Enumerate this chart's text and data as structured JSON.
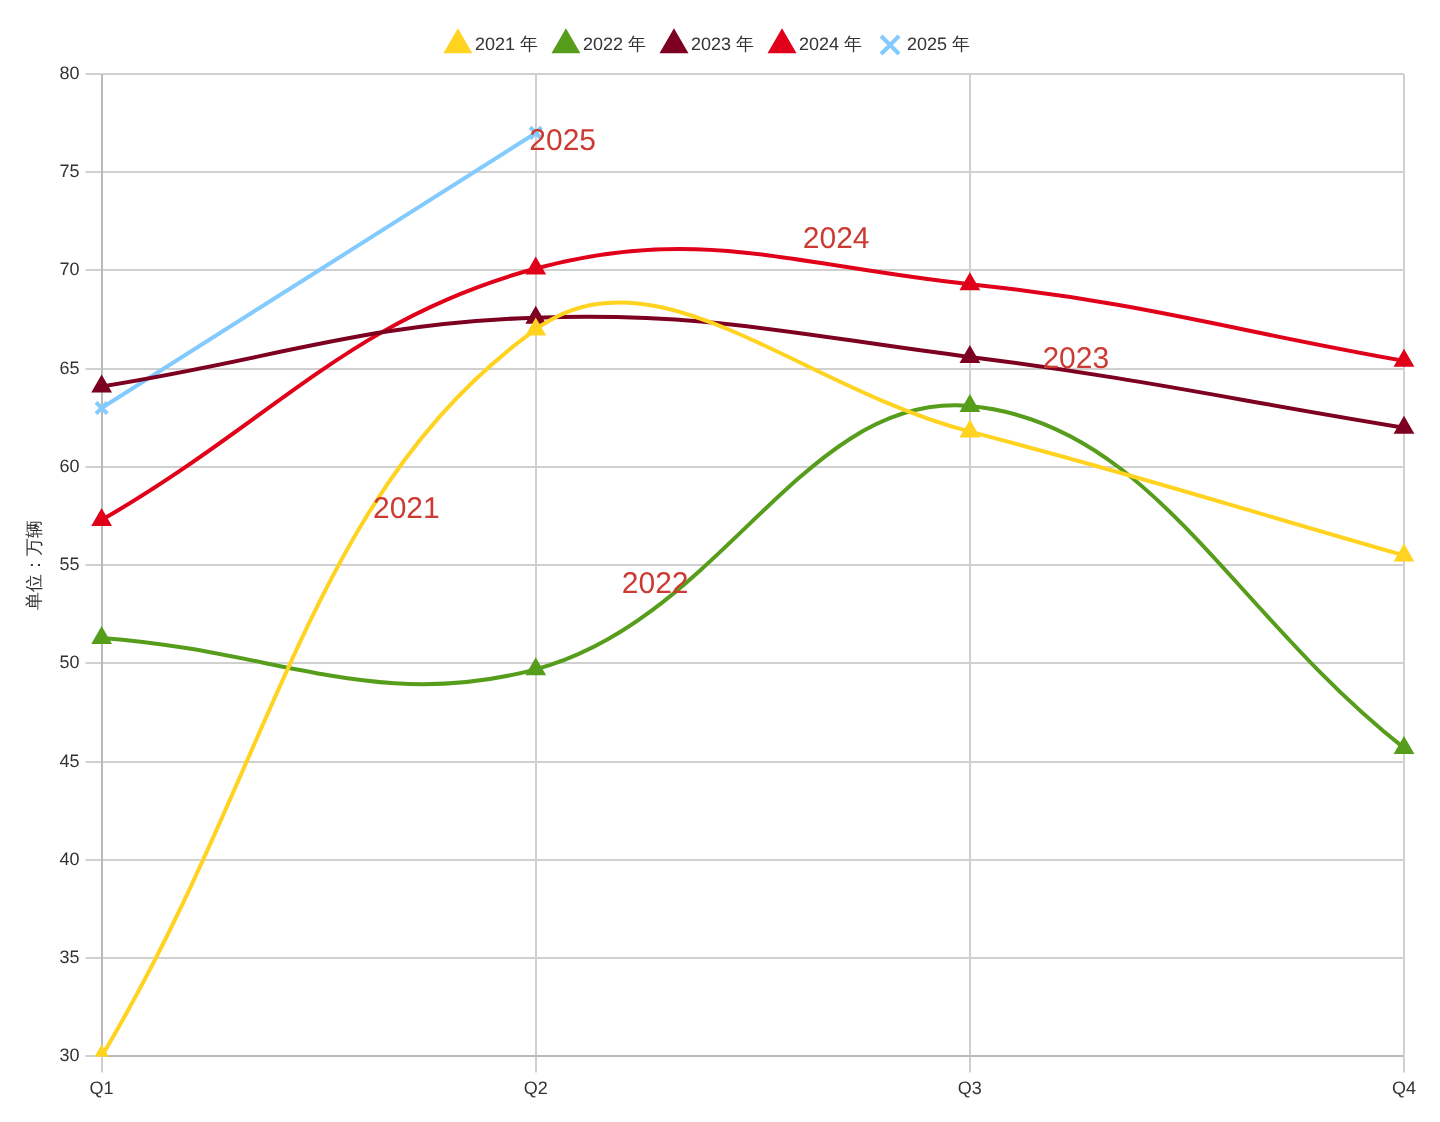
{
  "chart_data": {
    "type": "line",
    "ylabel": "单位：万辆",
    "categories": [
      "Q1",
      "Q2",
      "Q3",
      "Q4"
    ],
    "series": [
      {
        "name": "2021 年",
        "color": "#ffd320",
        "values": [
          30,
          67,
          61.8,
          55.5
        ]
      },
      {
        "name": "2022 年",
        "color": "#579d1c",
        "values": [
          51.3,
          49.7,
          63.1,
          45.7
        ]
      },
      {
        "name": "2023 年",
        "color": "#7e0021",
        "values": [
          64.1,
          67.6,
          65.6,
          62
        ]
      },
      {
        "name": "2024 年",
        "color": "#e0001a",
        "values": [
          57.3,
          70.1,
          69.3,
          65.4
        ]
      },
      {
        "name": "2025 年",
        "color": "#83caff",
        "marker": "cross",
        "values": [
          63,
          77,
          null,
          null
        ]
      }
    ],
    "ylim": [
      30,
      80
    ],
    "yticks": [
      30,
      35,
      40,
      45,
      50,
      55,
      60,
      65,
      70,
      75,
      80
    ],
    "grid": true,
    "legend": "top",
    "marker": "triangle",
    "annotations": [
      "2025",
      "2024",
      "2023",
      "2021",
      "2022"
    ]
  }
}
